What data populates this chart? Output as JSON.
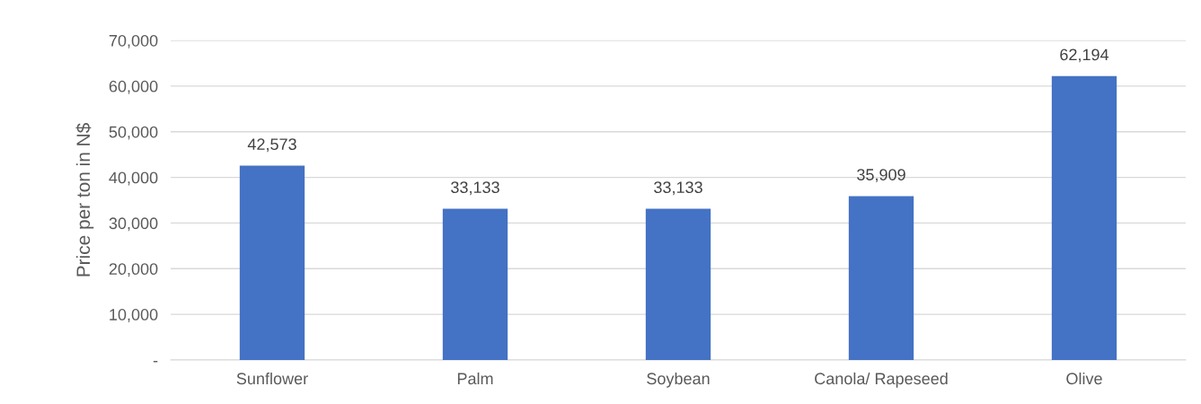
{
  "chart_data": {
    "type": "bar",
    "ylabel": "Price per ton in N$",
    "categories": [
      "Sunflower",
      "Palm",
      "Soybean",
      "Canola/ Rapeseed",
      "Olive"
    ],
    "values": [
      42573,
      33133,
      33133,
      35909,
      62194
    ],
    "value_labels": [
      "42,573",
      "33,133",
      "33,133",
      "35,909",
      "62,194"
    ],
    "color": "#4472c4",
    "ylim": [
      0,
      70000
    ],
    "yticks": [
      {
        "value": 0,
        "label": "-"
      },
      {
        "value": 10000,
        "label": "10,000"
      },
      {
        "value": 20000,
        "label": "20,000"
      },
      {
        "value": 30000,
        "label": "30,000"
      },
      {
        "value": 40000,
        "label": "40,000"
      },
      {
        "value": 50000,
        "label": "50,000"
      },
      {
        "value": 60000,
        "label": "60,000"
      },
      {
        "value": 70000,
        "label": "70,000"
      }
    ],
    "grid": "y",
    "legend": false
  }
}
